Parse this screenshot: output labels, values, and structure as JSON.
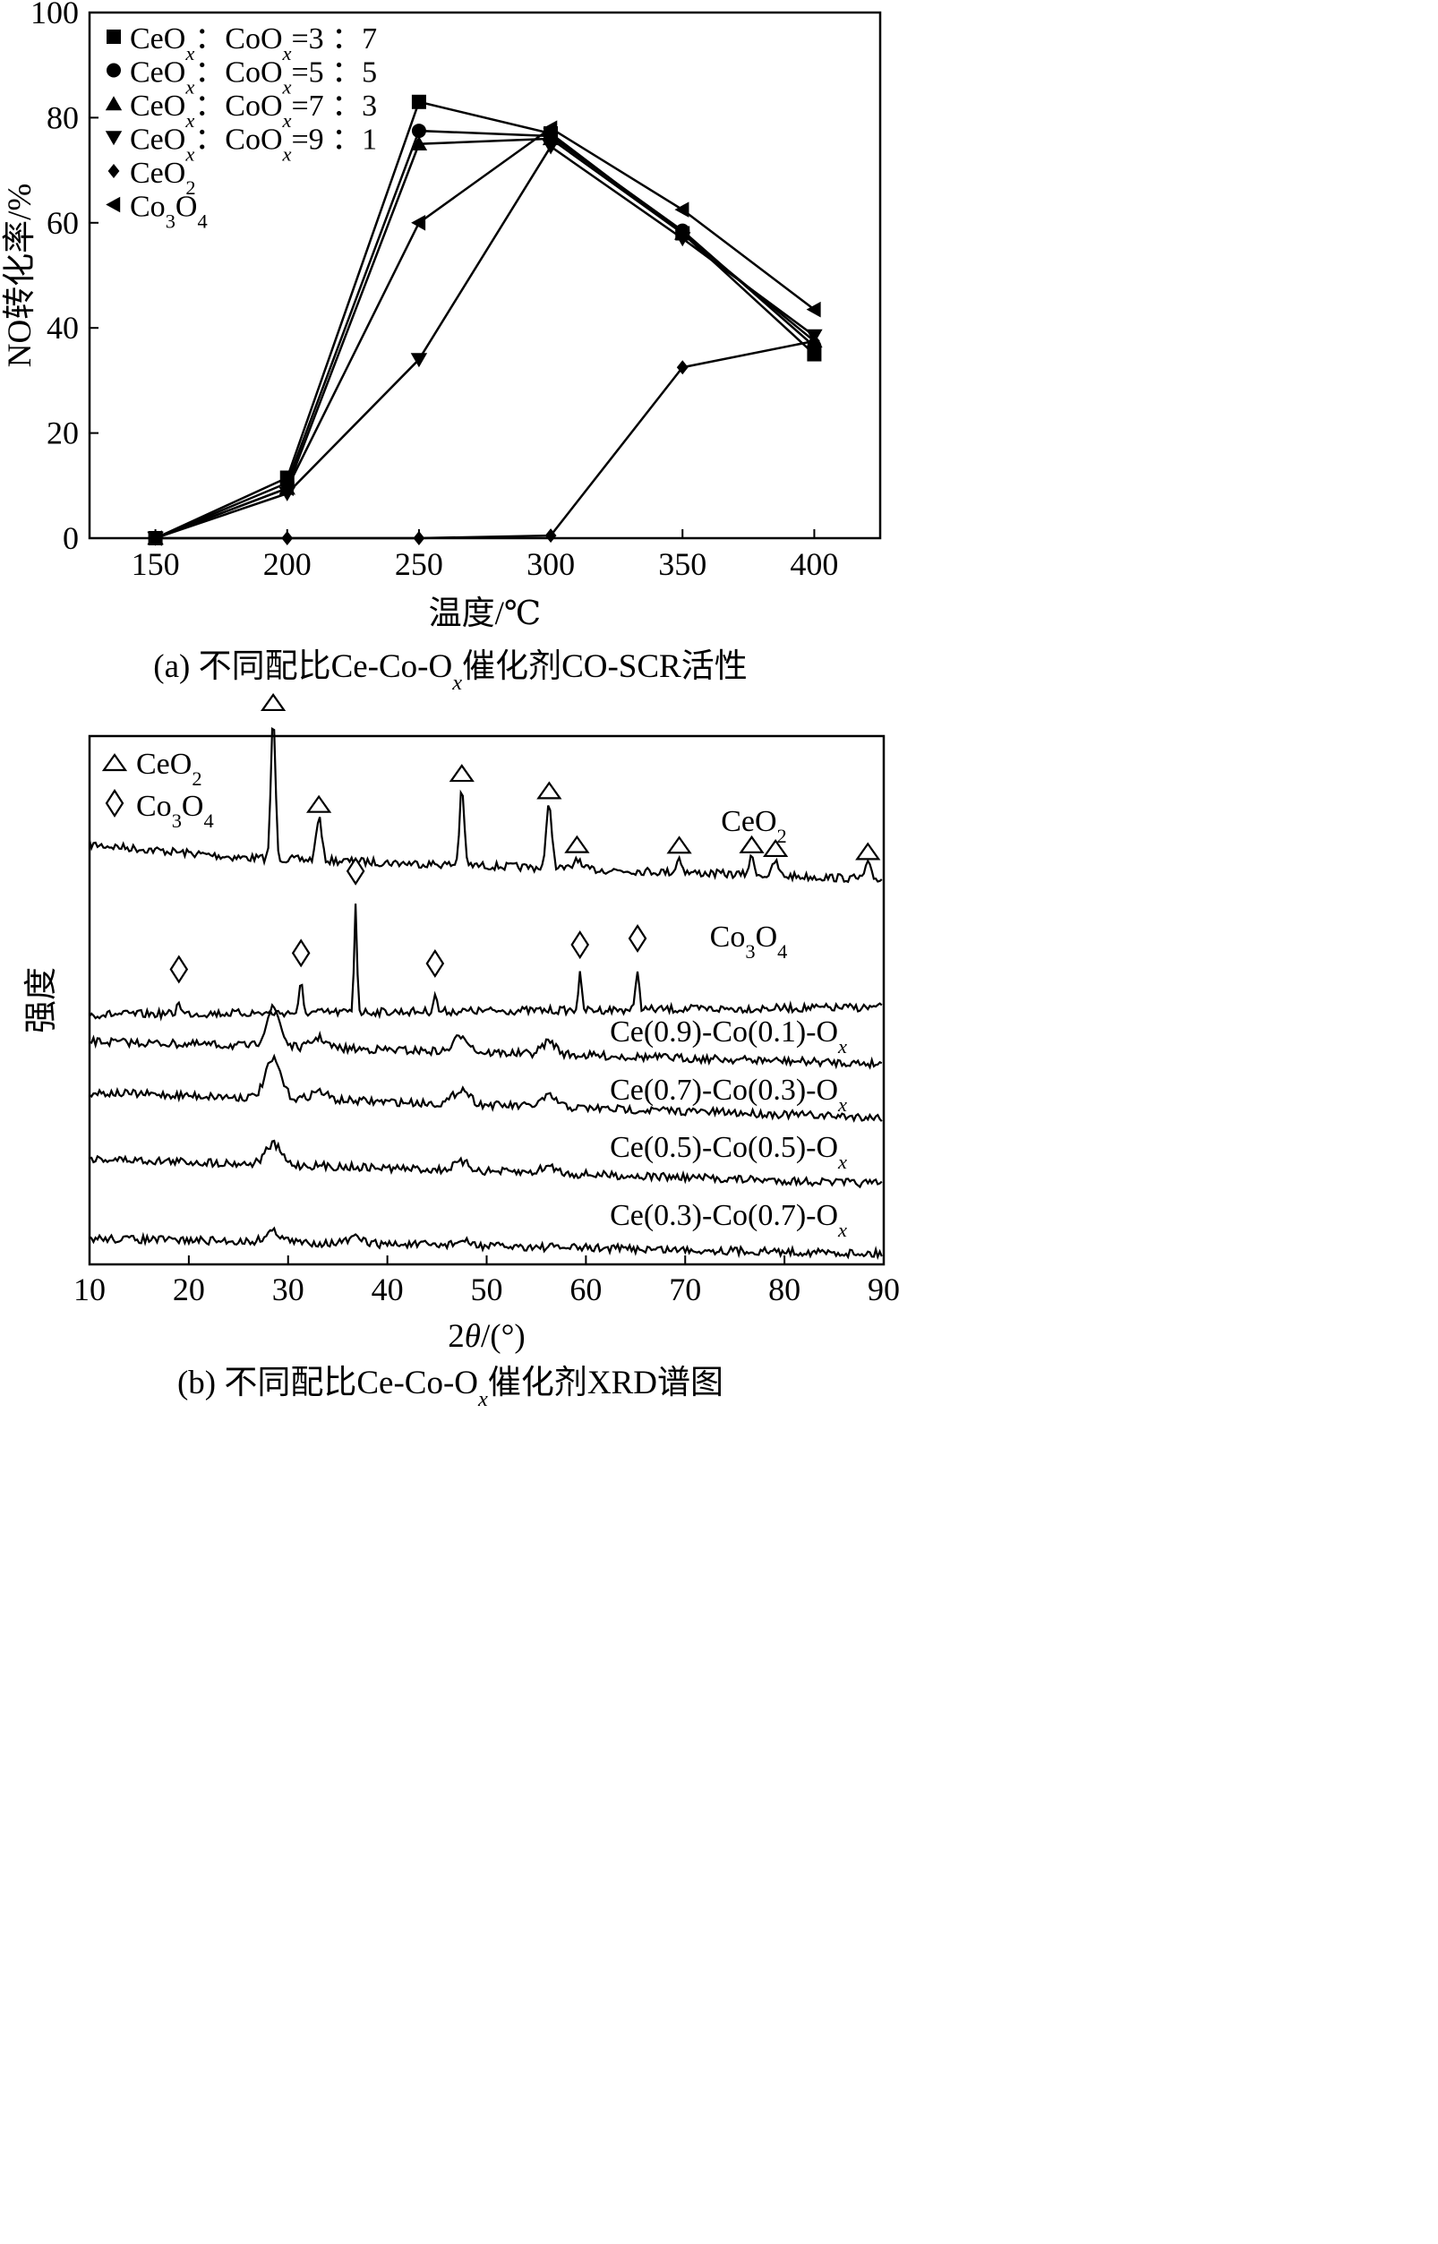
{
  "chart_data": [
    {
      "type": "line",
      "caption": "(a) 不同配比Ce-Co-Oₓ催化剂CO-SCR活性",
      "caption_parts": [
        "(a) 不同配比Ce-Co-O",
        "x",
        "催化剂CO-SCR活性"
      ],
      "xlabel": "温度/℃",
      "ylabel": "NO转化率/%",
      "xlim": [
        125,
        425
      ],
      "ylim": [
        0,
        100
      ],
      "xticks": [
        150,
        200,
        250,
        300,
        350,
        400
      ],
      "yticks": [
        0,
        20,
        40,
        60,
        80,
        100
      ],
      "grid": false,
      "legend_position": "top-left",
      "x": [
        150,
        200,
        250,
        300,
        350,
        400
      ],
      "series": [
        {
          "name": "CeOₓ : CoOₓ=3 : 7",
          "name_parts": [
            "CeO",
            "x",
            "：CoO",
            "x",
            "=3 ：7"
          ],
          "marker": "square",
          "values": [
            0,
            11.5,
            83,
            77,
            58,
            35
          ]
        },
        {
          "name": "CeOₓ : CoOₓ=5 : 5",
          "name_parts": [
            "CeO",
            "x",
            "：CoO",
            "x",
            "=5 ：5"
          ],
          "marker": "circle",
          "values": [
            0,
            10.5,
            77.5,
            76.5,
            58.5,
            36.5
          ]
        },
        {
          "name": "CeOₓ : CoOₓ=7 : 3",
          "name_parts": [
            "CeO",
            "x",
            "：CoO",
            "x",
            "=7 ：3"
          ],
          "marker": "triangle-up",
          "values": [
            0,
            9.5,
            75,
            76,
            58,
            37.5
          ]
        },
        {
          "name": "CeOₓ : CoOₓ=9 : 1",
          "name_parts": [
            "CeO",
            "x",
            "：CoO",
            "x",
            "=9 ：1"
          ],
          "marker": "triangle-down",
          "values": [
            0,
            8.5,
            34,
            74.5,
            57,
            38.5
          ]
        },
        {
          "name": "CeO₂",
          "name_parts": [
            "CeO",
            "2"
          ],
          "marker": "diamond",
          "values": [
            0,
            0,
            0,
            0.5,
            32.5,
            37.5
          ]
        },
        {
          "name": "Co₃O₄",
          "name_parts": [
            "Co",
            "3",
            "O",
            "4"
          ],
          "marker": "triangle-left",
          "values": [
            0,
            9.5,
            60,
            78,
            62.5,
            43.5
          ]
        }
      ]
    },
    {
      "type": "line",
      "caption": "(b) 不同配比Ce-Co-Oₓ催化剂XRD谱图",
      "caption_parts": [
        "(b) 不同配比Ce-Co-O",
        "x",
        "催化剂XRD谱图"
      ],
      "xlabel": "2θ/(°)",
      "ylabel": "强度",
      "xlim": [
        10,
        90
      ],
      "xticks": [
        10,
        20,
        30,
        40,
        50,
        60,
        70,
        80,
        90
      ],
      "yticks": [],
      "grid": false,
      "legend_position": "top-left",
      "legend": [
        {
          "name": "CeO₂",
          "name_parts": [
            "CeO",
            "2"
          ],
          "marker": "triangle-open"
        },
        {
          "name": "Co₃O₄",
          "name_parts": [
            "Co",
            "3",
            "O",
            "4"
          ],
          "marker": "diamond-open"
        }
      ],
      "series": [
        {
          "name": "CeO₂",
          "name_parts": [
            "CeO",
            "2"
          ],
          "peaks": [
            [
              28.5,
              1.0
            ],
            [
              33.1,
              0.3
            ],
            [
              47.5,
              0.55
            ],
            [
              56.3,
              0.45
            ],
            [
              59.1,
              0.08
            ],
            [
              69.4,
              0.1
            ],
            [
              76.7,
              0.12
            ],
            [
              79.1,
              0.1
            ],
            [
              88.4,
              0.1
            ]
          ]
        },
        {
          "name": "Co₃O₄",
          "name_parts": [
            "Co",
            "3",
            "O",
            "4"
          ],
          "peaks": [
            [
              19.0,
              0.12
            ],
            [
              31.3,
              0.25
            ],
            [
              36.8,
              0.95
            ],
            [
              44.8,
              0.15
            ],
            [
              59.4,
              0.3
            ],
            [
              65.2,
              0.35
            ]
          ]
        },
        {
          "name": "Ce(0.9)-Co(0.1)-Oₓ",
          "name_parts": [
            "Ce(0.9)-Co(0.1)-O",
            "x"
          ],
          "peaks": [
            [
              28.5,
              0.45
            ],
            [
              33.1,
              0.12
            ],
            [
              47.5,
              0.2
            ],
            [
              56.3,
              0.15
            ]
          ]
        },
        {
          "name": "Ce(0.7)-Co(0.3)-Oₓ",
          "name_parts": [
            "Ce(0.7)-Co(0.3)-O",
            "x"
          ],
          "peaks": [
            [
              28.5,
              0.45
            ],
            [
              33.1,
              0.1
            ],
            [
              47.5,
              0.18
            ],
            [
              56.3,
              0.12
            ]
          ]
        },
        {
          "name": "Ce(0.5)-Co(0.5)-Oₓ",
          "name_parts": [
            "Ce(0.5)-Co(0.5)-O",
            "x"
          ],
          "peaks": [
            [
              28.5,
              0.3
            ],
            [
              47.5,
              0.12
            ],
            [
              56.3,
              0.1
            ]
          ]
        },
        {
          "name": "Ce(0.3)-Co(0.7)-Oₓ",
          "name_parts": [
            "Ce(0.3)-Co(0.7)-O",
            "x"
          ],
          "peaks": [
            [
              28.5,
              0.2
            ],
            [
              36.8,
              0.1
            ],
            [
              47.5,
              0.08
            ]
          ]
        }
      ],
      "markers": {
        "CeO₂": [
          28.5,
          33.1,
          47.5,
          56.3,
          59.1,
          69.4,
          76.7,
          79.1,
          88.4
        ],
        "Co₃O₄": [
          19.0,
          31.3,
          36.8,
          44.8,
          59.4,
          65.2
        ]
      }
    }
  ]
}
